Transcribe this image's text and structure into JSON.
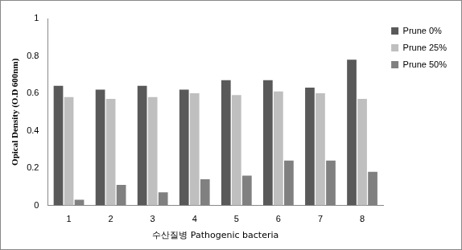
{
  "chart_data": {
    "type": "bar",
    "x_label": "수산질병 Pathogenic bacteria",
    "y_label": "Opical Density (O.D 600nm)",
    "categories": [
      "1",
      "2",
      "3",
      "4",
      "5",
      "6",
      "7",
      "8"
    ],
    "series": [
      {
        "name": "Prune 0%",
        "color": "#595959",
        "values": [
          0.64,
          0.62,
          0.64,
          0.62,
          0.67,
          0.67,
          0.63,
          0.78
        ]
      },
      {
        "name": "Prune 25%",
        "color": "#bfbfbf",
        "values": [
          0.58,
          0.57,
          0.58,
          0.6,
          0.59,
          0.61,
          0.6,
          0.57
        ]
      },
      {
        "name": "Prune 50%",
        "color": "#808080",
        "values": [
          0.03,
          0.11,
          0.07,
          0.14,
          0.16,
          0.24,
          0.24,
          0.18
        ]
      }
    ],
    "ylim": [
      0,
      1
    ],
    "yticks": [
      0,
      0.2,
      0.4,
      0.6,
      0.8,
      1
    ],
    "grid": false,
    "legend": "right"
  }
}
